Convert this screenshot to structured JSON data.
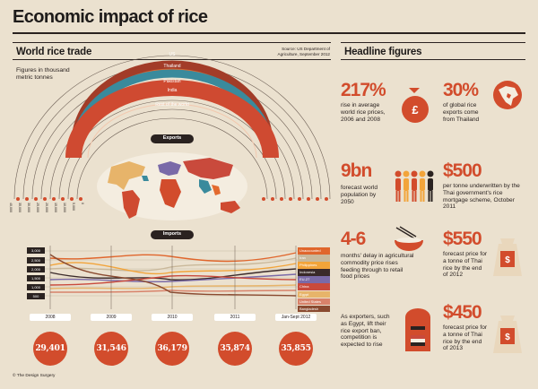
{
  "title": "Economic impact of rice",
  "trade": {
    "title": "World rice trade",
    "source": "Source: US Department of Agriculture, September 2012",
    "units": "Figures in thousand metric tonnes",
    "exporters": [
      {
        "name": "US",
        "color": "#f08a3c"
      },
      {
        "name": "Thailand",
        "color": "#e36a2e"
      },
      {
        "name": "Pakistan",
        "color": "#a23c28"
      },
      {
        "name": "India",
        "color": "#3a8a9c"
      },
      {
        "name": "Rest of the world",
        "color": "#cf4a31"
      }
    ],
    "exports_label": "Exports",
    "imports_label": "Imports",
    "scale_ticks": [
      "40,000",
      "35,000",
      "30,000",
      "25,000",
      "20,000",
      "15,000",
      "10,000",
      "5,000",
      "0"
    ],
    "import_ticks": [
      "3,000",
      "2,500",
      "2,000",
      "1,500",
      "1,000",
      "500"
    ],
    "importers": [
      {
        "name": "Unaccounted",
        "color": "#e0662c"
      },
      {
        "name": "Iran",
        "color": "#c9b89a"
      },
      {
        "name": "Philippines",
        "color": "#f2a43a"
      },
      {
        "name": "Indonesia",
        "color": "#3a2a2a"
      },
      {
        "name": "EU-27",
        "color": "#7a6aa8"
      },
      {
        "name": "China",
        "color": "#c94a3c"
      },
      {
        "name": "Egypt",
        "color": "#e7b46a"
      },
      {
        "name": "United States",
        "color": "#d8826a"
      },
      {
        "name": "Bangladesh",
        "color": "#8a4a30"
      }
    ],
    "years": [
      "2008",
      "2009",
      "2010",
      "2011",
      "Jan-Sept 2012"
    ],
    "totals": [
      "29,401",
      "31,546",
      "36,179",
      "35,874",
      "35,855"
    ]
  },
  "headline": {
    "title": "Headline figures",
    "items": [
      {
        "big": "217%",
        "text": "rise in average world rice prices, 2006 and 2008",
        "icon": "money-bag-icon"
      },
      {
        "big": "30%",
        "text": "of global rice exports come from Thailand",
        "icon": "globe-thailand-icon"
      },
      {
        "big": "9bn",
        "text": "forecast world population by 2050",
        "icon": "people-icon"
      },
      {
        "big": "$500",
        "text": "per tonne underwritten by the Thai government's rice mortgage scheme, October 2011",
        "icon": "none"
      },
      {
        "big": "4-6",
        "text": "months' delay in agricultural commodity price rises feeding through to retail food prices",
        "icon": "rice-bowl-icon"
      },
      {
        "big": "$550",
        "text": "forecast price for a tonne of Thai rice by the end of 2012",
        "icon": "rice-sack-icon"
      },
      {
        "big": "",
        "text": "As exporters, such as Egypt, lift their rice export ban, competition is expected to rise",
        "icon": "postbox-egypt-icon"
      },
      {
        "big": "$450",
        "text": "forecast price for a tonne of Thai rice by the end of 2013",
        "icon": "rice-sack-icon"
      }
    ]
  },
  "credit": "© The Design Surgery",
  "colors": {
    "background": "#ebe1cf",
    "accent": "#d24c2c",
    "dark": "#2a2220"
  }
}
